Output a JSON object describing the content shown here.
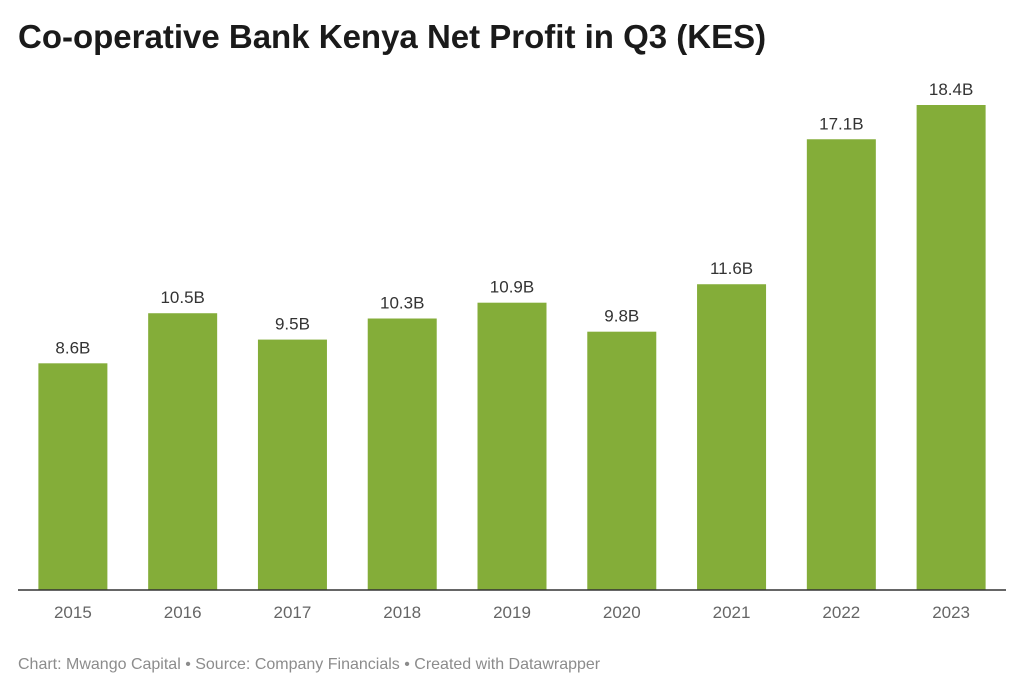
{
  "title": "Co-operative Bank Kenya Net Profit in Q3 (KES)",
  "footer": "Chart: Mwango Capital • Source: Company Financials • Created with Datawrapper",
  "colors": {
    "bar": "#84ad39",
    "axis": "#333333",
    "label": "#333333",
    "tick": "#666666"
  },
  "chart_data": {
    "type": "bar",
    "title": "Co-operative Bank Kenya Net Profit in Q3 (KES)",
    "xlabel": "",
    "ylabel": "",
    "categories": [
      "2015",
      "2016",
      "2017",
      "2018",
      "2019",
      "2020",
      "2021",
      "2022",
      "2023"
    ],
    "values": [
      8.6,
      10.5,
      9.5,
      10.3,
      10.9,
      9.8,
      11.6,
      17.1,
      18.4
    ],
    "data_labels": [
      "8.6B",
      "10.5B",
      "9.5B",
      "10.3B",
      "10.9B",
      "9.8B",
      "11.6B",
      "17.1B",
      "18.4B"
    ],
    "ylim": [
      0,
      18.4
    ],
    "grid": false,
    "legend": "none"
  }
}
